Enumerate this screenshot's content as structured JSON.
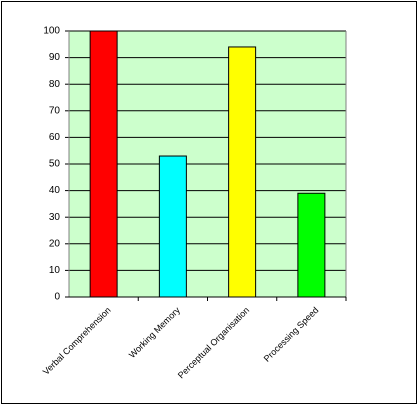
{
  "chart_data": {
    "type": "bar",
    "categories": [
      "Verbal Comprehension",
      "Working Memory",
      "Perceptual Organisation",
      "Processing Speed"
    ],
    "values": [
      100,
      53,
      94,
      39
    ],
    "colors": [
      "#ff0000",
      "#00ffff",
      "#ffff00",
      "#00ff00"
    ],
    "ylim": [
      0,
      100
    ],
    "yticks": [
      0,
      10,
      20,
      30,
      40,
      50,
      60,
      70,
      80,
      90,
      100
    ],
    "grid": true
  }
}
